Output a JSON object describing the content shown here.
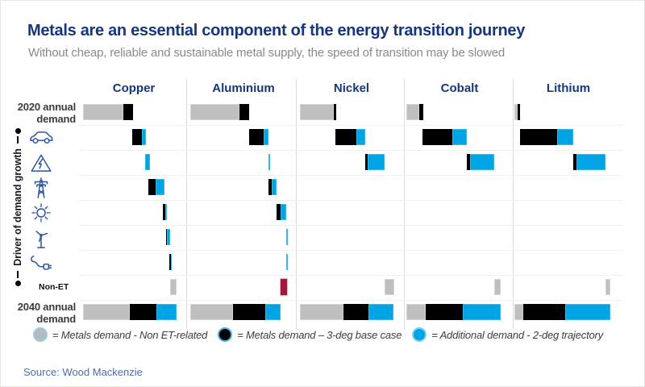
{
  "page": {
    "title": "Metals are an essential component of the energy transition journey",
    "subtitle": "Without cheap, reliable and sustainable metal supply, the speed of transition may be slowed",
    "source": "Source: Wood Mackenzie"
  },
  "axis": {
    "driver_label": "Driver of demand growth"
  },
  "row_labels": {
    "y2020": "2020 annual demand",
    "nonet": "Non-ET",
    "y2040": "2040 annual demand"
  },
  "legend": {
    "items": [
      {
        "key": "gray",
        "swatch": "#bfbfbf",
        "label": "= Metals demand - Non ET-related"
      },
      {
        "key": "black",
        "swatch": "#000000",
        "label": "= Metals demand – 3-deg base case"
      },
      {
        "key": "blue",
        "swatch": "#00a3e3",
        "label": "= Additional demand - 2-deg trajectory"
      }
    ]
  },
  "chart_data": {
    "type": "bar",
    "subtype": "waterfall-grid",
    "title": "Metals are an essential component of the energy transition journey",
    "columns": [
      "Copper",
      "Aluminium",
      "Nickel",
      "Cobalt",
      "Lithium"
    ],
    "rows": [
      {
        "id": "y2020",
        "label": "2020 annual demand"
      },
      {
        "id": "ev",
        "icon": "car-icon"
      },
      {
        "id": "storage",
        "icon": "high-voltage-icon"
      },
      {
        "id": "grid",
        "icon": "transmission-tower-icon"
      },
      {
        "id": "solar",
        "icon": "sun-icon"
      },
      {
        "id": "wind",
        "icon": "wind-turbine-icon"
      },
      {
        "id": "charging",
        "icon": "ev-plug-icon"
      },
      {
        "id": "nonet",
        "label": "Non-ET"
      },
      {
        "id": "y2040",
        "label": "2040 annual demand"
      }
    ],
    "units": "segments are [colorKey, startOffset, width] in column-relative units (column = 136 units wide); no numeric axis is shown in the figure",
    "colors": {
      "gray": "#bfbfbf",
      "black": "#000000",
      "blue": "#00a3e3",
      "red": "#a2173a"
    },
    "bars": {
      "Copper": {
        "y2020": [
          [
            "gray",
            5,
            50
          ],
          [
            "black",
            55,
            12
          ]
        ],
        "ev": [
          [
            "black",
            66,
            12
          ],
          [
            "blue",
            78,
            5
          ]
        ],
        "storage": [
          [
            "blue",
            82,
            6
          ]
        ],
        "grid": [
          [
            "black",
            86,
            9
          ],
          [
            "blue",
            95,
            11
          ]
        ],
        "solar": [
          [
            "black",
            104,
            3
          ],
          [
            "blue",
            107,
            2
          ]
        ],
        "wind": [
          [
            "black",
            108,
            1
          ],
          [
            "blue",
            109,
            4
          ]
        ],
        "charging": [
          [
            "black",
            112,
            2
          ],
          [
            "blue",
            114,
            1
          ]
        ],
        "nonet": [
          [
            "gray",
            113,
            8
          ]
        ],
        "y2040": [
          [
            "gray",
            5,
            58
          ],
          [
            "black",
            63,
            33
          ],
          [
            "blue",
            96,
            25
          ]
        ]
      },
      "Aluminium": {
        "y2020": [
          [
            "gray",
            2,
            61
          ],
          [
            "black",
            63,
            12
          ]
        ],
        "ev": [
          [
            "black",
            75,
            18
          ],
          [
            "blue",
            93,
            6
          ]
        ],
        "storage": [
          [
            "blue",
            99,
            2
          ]
        ],
        "grid": [
          [
            "black",
            99,
            4
          ],
          [
            "blue",
            103,
            6
          ]
        ],
        "solar": [
          [
            "black",
            109,
            5
          ],
          [
            "blue",
            114,
            7
          ]
        ],
        "wind": [
          [
            "blue",
            121,
            2
          ]
        ],
        "charging": [
          [
            "blue",
            121,
            2
          ]
        ],
        "nonet": [
          [
            "red",
            114,
            8
          ]
        ],
        "y2040": [
          [
            "gray",
            2,
            53
          ],
          [
            "black",
            55,
            40
          ],
          [
            "blue",
            95,
            19
          ]
        ]
      },
      "Nickel": {
        "y2020": [
          [
            "gray",
            4,
            42
          ],
          [
            "black",
            46,
            3
          ]
        ],
        "ev": [
          [
            "black",
            48,
            26
          ],
          [
            "blue",
            74,
            11
          ]
        ],
        "storage": [
          [
            "black",
            85,
            3
          ],
          [
            "blue",
            88,
            21
          ]
        ],
        "grid": [],
        "solar": [],
        "wind": [],
        "charging": [],
        "nonet": [
          [
            "gray",
            109,
            12
          ]
        ],
        "y2040": [
          [
            "gray",
            4,
            54
          ],
          [
            "black",
            58,
            31
          ],
          [
            "blue",
            89,
            31
          ]
        ]
      },
      "Cobalt": {
        "y2020": [
          [
            "gray",
            2,
            16
          ],
          [
            "black",
            18,
            5
          ]
        ],
        "ev": [
          [
            "black",
            22,
            37
          ],
          [
            "blue",
            59,
            18
          ]
        ],
        "storage": [
          [
            "black",
            77,
            4
          ],
          [
            "blue",
            81,
            30
          ]
        ],
        "grid": [],
        "solar": [],
        "wind": [],
        "charging": [],
        "nonet": [
          [
            "gray",
            111,
            8
          ]
        ],
        "y2040": [
          [
            "gray",
            2,
            24
          ],
          [
            "black",
            26,
            46
          ],
          [
            "blue",
            72,
            47
          ]
        ]
      },
      "Lithium": {
        "y2020": [
          [
            "gray",
            1,
            4
          ],
          [
            "black",
            5,
            3
          ]
        ],
        "ev": [
          [
            "black",
            8,
            46
          ],
          [
            "blue",
            54,
            20
          ]
        ],
        "storage": [
          [
            "black",
            74,
            4
          ],
          [
            "blue",
            78,
            36
          ]
        ],
        "grid": [],
        "solar": [],
        "wind": [],
        "charging": [],
        "nonet": [
          [
            "gray",
            114,
            6
          ]
        ],
        "y2040": [
          [
            "gray",
            1,
            11
          ],
          [
            "black",
            12,
            52
          ],
          [
            "blue",
            64,
            56
          ]
        ]
      }
    }
  }
}
